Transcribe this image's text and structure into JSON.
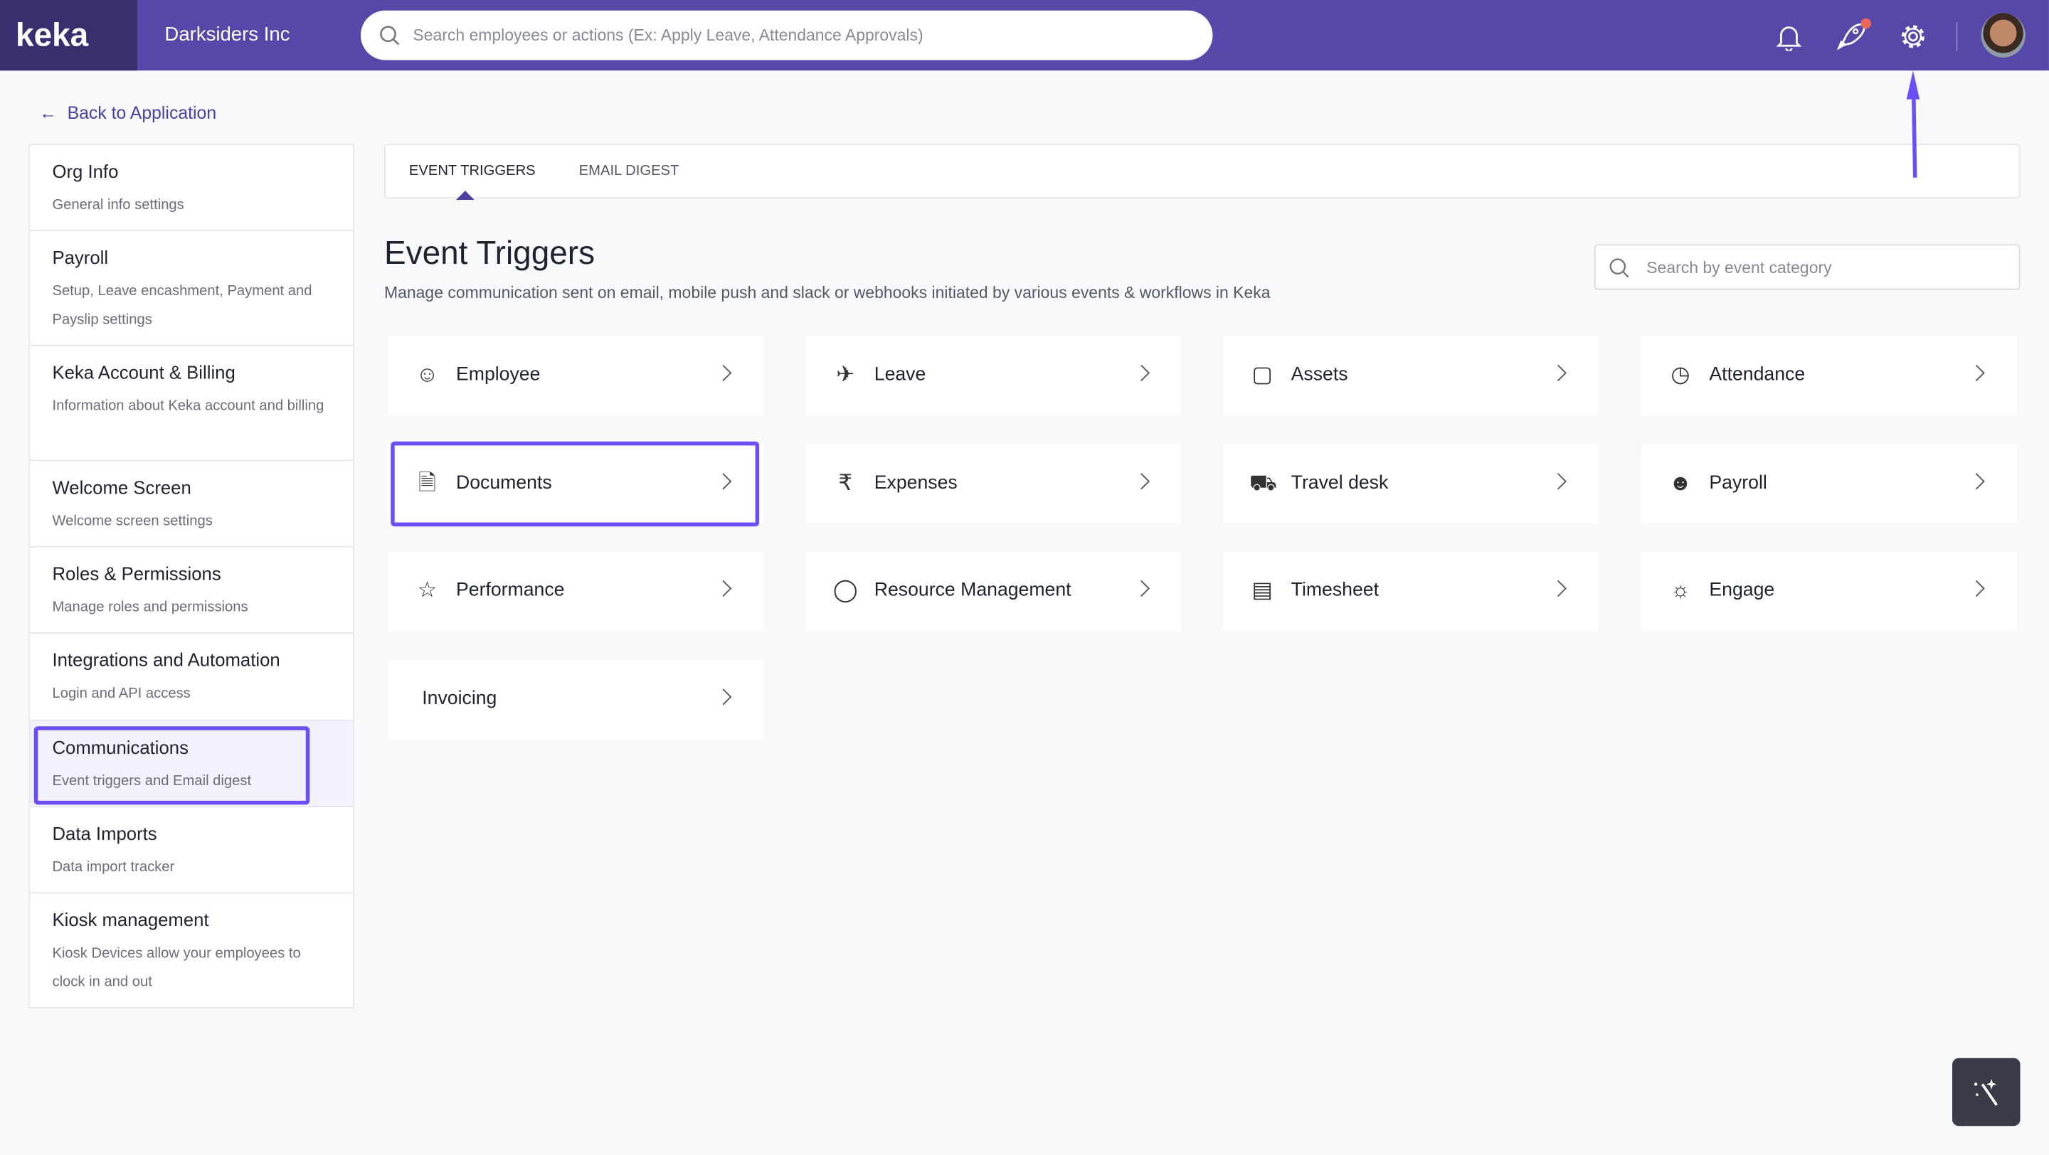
{
  "header": {
    "logo_text": "keka",
    "org_name": "Darksiders Inc",
    "search_placeholder": "Search employees or actions (Ex: Apply Leave, Attendance Approvals)",
    "icons": [
      "bell-icon",
      "rocket-icon",
      "gear-icon",
      "avatar"
    ],
    "notification_dot_color": "#e8665a"
  },
  "back_link": "Back to Application",
  "sidebar": {
    "items": [
      {
        "title": "Org Info",
        "desc": "General info settings"
      },
      {
        "title": "Payroll",
        "desc": "Setup, Leave encashment, Payment and Payslip settings"
      },
      {
        "title": "Keka Account & Billing",
        "desc": "Information about Keka account and billing"
      },
      {
        "title": "Welcome Screen",
        "desc": "Welcome screen settings"
      },
      {
        "title": "Roles & Permissions",
        "desc": "Manage roles and permissions"
      },
      {
        "title": "Integrations and Automation",
        "desc": "Login and API access"
      },
      {
        "title": "Communications",
        "desc": "Event triggers and Email digest",
        "active": true
      },
      {
        "title": "Data Imports",
        "desc": "Data import tracker"
      },
      {
        "title": "Kiosk management",
        "desc": "Kiosk Devices allow your employees to clock in and out"
      }
    ]
  },
  "tabs": [
    {
      "label": "EVENT TRIGGERS",
      "active": true
    },
    {
      "label": "EMAIL DIGEST",
      "active": false
    }
  ],
  "main": {
    "title": "Event Triggers",
    "description": "Manage communication sent on email, mobile push and slack or webhooks initiated by various events & workflows in Keka",
    "search_placeholder": "Search by event category",
    "categories": [
      {
        "label": "Employee",
        "icon": "people-icon"
      },
      {
        "label": "Leave",
        "icon": "plane-icon"
      },
      {
        "label": "Assets",
        "icon": "devices-icon"
      },
      {
        "label": "Attendance",
        "icon": "clock-icon"
      },
      {
        "label": "Documents",
        "icon": "document-icon",
        "highlighted": true
      },
      {
        "label": "Expenses",
        "icon": "rupee-icon"
      },
      {
        "label": "Travel desk",
        "icon": "bus-icon"
      },
      {
        "label": "Payroll",
        "icon": "payroll-icon"
      },
      {
        "label": "Performance",
        "icon": "star-icon"
      },
      {
        "label": "Resource Management",
        "icon": "shield-icon"
      },
      {
        "label": "Timesheet",
        "icon": "timesheet-icon"
      },
      {
        "label": "Engage",
        "icon": "chat-icon"
      },
      {
        "label": "Invoicing",
        "icon": ""
      }
    ]
  },
  "colors": {
    "header": "#5548a8",
    "logo_bg": "#3a2f6e",
    "accent": "#4a3fa3",
    "annotation": "#6b4ef5"
  }
}
